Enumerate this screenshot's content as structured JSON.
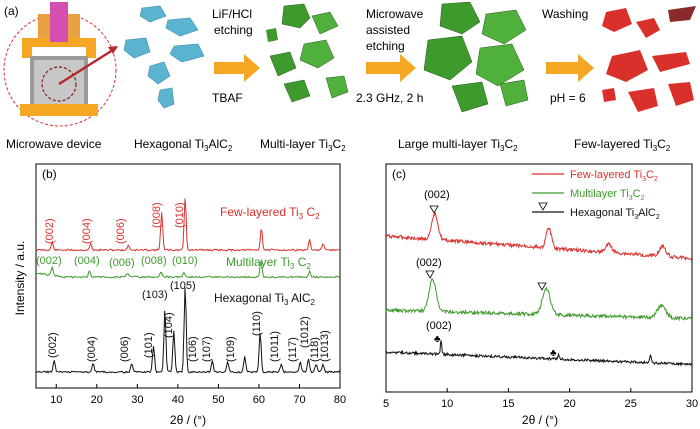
{
  "panel_a": {
    "label": "(a)",
    "steps": [
      {
        "top": "LiF/HCl",
        "mid": "etching",
        "bottom": "TBAF"
      },
      {
        "top": "Microwave",
        "mid": "assisted",
        "mid2": "etching",
        "bottom": "2.3 GHz, 2 h"
      },
      {
        "top": "Washing",
        "bottom": "pH = 6"
      }
    ],
    "captions": [
      {
        "main": "Microwave device"
      },
      {
        "main": "Hexagonal Ti",
        "sub1": "3",
        "mid": "AlC",
        "sub2": "2"
      },
      {
        "main": "Multi-layer Ti",
        "sub1": "3",
        "mid": "C",
        "sub2": "2"
      },
      {
        "main": "Large multi-layer Ti",
        "sub1": "3",
        "mid": "C",
        "sub2": "2"
      },
      {
        "main": "Few-layered Ti",
        "sub1": "3",
        "mid": "C",
        "sub2": "2"
      }
    ],
    "colors": {
      "arrow": "#f5a623",
      "hex": "#5ab4d0",
      "green": "#3f9a2e",
      "red": "#d9302c"
    }
  },
  "panel_b": {
    "label": "(b)",
    "series_labels": {
      "few": {
        "main": "Few-layered Ti",
        "sub1": "3",
        "mid": " C",
        "sub2": "2"
      },
      "multi": {
        "main": "Multilayer Ti",
        "sub1": "3",
        "mid": " C",
        "sub2": "2"
      },
      "hex": {
        "main": "Hexagonal Ti",
        "sub1": "3",
        "mid": " AlC",
        "sub2": "2"
      }
    },
    "few_peaks": [
      "(002)",
      "(004)",
      "(006)",
      "(008)",
      "(010)"
    ],
    "multi_peaks": [
      "(002)",
      "(004)",
      "(006)",
      "(008)",
      "(010)"
    ],
    "hex_peaks": [
      "(002)",
      "(004)",
      "(006)",
      "(101)",
      "(103)",
      "(104)",
      "(105)",
      "(106)",
      "(107)",
      "(109)",
      "(110)",
      "(1011)",
      "(117)",
      "(1012)",
      "(118)",
      "(1013)"
    ]
  },
  "panel_c": {
    "label": "(c)",
    "legend": [
      {
        "main": "Few-layered Ti",
        "sub1": "3",
        "mid": "C",
        "sub2": "2",
        "color": "#d9302c"
      },
      {
        "main": "Multilayer Ti",
        "sub1": "3",
        "mid": "C",
        "sub2": "2",
        "color": "#3f9a2e"
      },
      {
        "main": "Hexagonal Ti",
        "sub1": "3",
        "mid": "AlC",
        "sub2": "2",
        "color": "#111111"
      }
    ],
    "peak_labels": [
      "(002)",
      "(002)",
      "(002)"
    ]
  },
  "chart_data": [
    {
      "type": "line",
      "xlabel": "2θ / (°)",
      "ylabel": "Intensity / a.u.",
      "xlim": [
        5,
        80
      ],
      "xticks": [
        10,
        20,
        30,
        40,
        50,
        60,
        70,
        80
      ],
      "series": [
        {
          "color": "#d9302c",
          "peaks_2theta": [
            9,
            18.5,
            27.8,
            36,
            41.8,
            60.6,
            72.5,
            75.8
          ]
        },
        {
          "color": "#3f9a2e",
          "peaks_2theta": [
            9,
            18.2,
            27.6,
            35.8,
            41.5,
            60.5,
            72.5
          ]
        },
        {
          "color": "#111111",
          "peaks_2theta": [
            9.5,
            19.1,
            28.6,
            34,
            36.8,
            39,
            41.8,
            48.5,
            52.3,
            56.5,
            60.3,
            65.5,
            70.2,
            72.2,
            74.1,
            75.8
          ]
        }
      ]
    },
    {
      "type": "line",
      "xlabel": "2θ / (°)",
      "ylabel": "Intensity / a.u.",
      "xlim": [
        5,
        30
      ],
      "xticks": [
        5,
        10,
        15,
        20,
        25,
        30
      ],
      "series": [
        {
          "color": "#d9302c",
          "peaks_2theta": [
            9,
            18.3,
            23.2,
            27.6
          ]
        },
        {
          "color": "#3f9a2e",
          "peaks_2theta": [
            8.8,
            18.1,
            27.5
          ]
        },
        {
          "color": "#111111",
          "peaks_2theta": [
            9.5,
            19.1,
            26.6
          ]
        }
      ]
    }
  ]
}
